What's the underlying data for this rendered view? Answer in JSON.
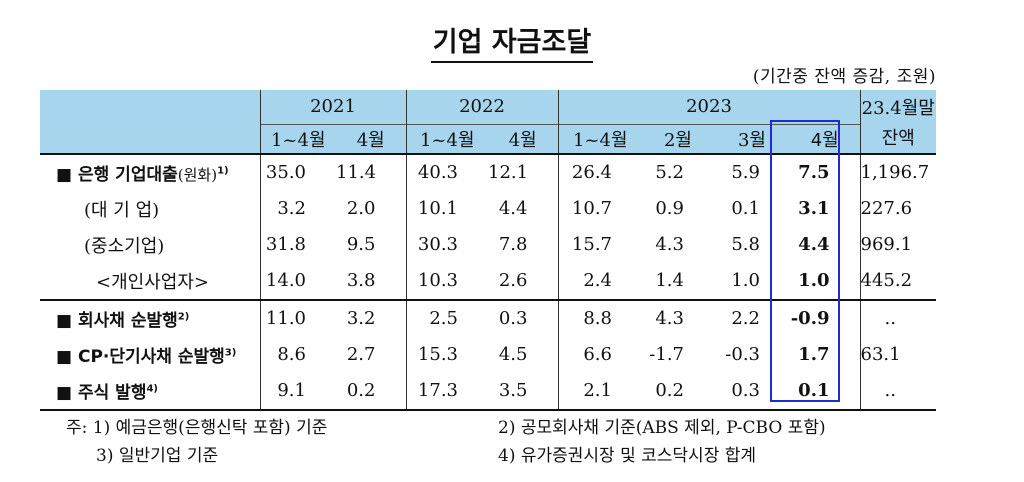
{
  "title": "기업 자금조달",
  "unit": "(기간중 잔액 증감, 조원)",
  "header": {
    "years": [
      "2021",
      "2022",
      "2023"
    ],
    "balance": "23.4월말",
    "balance2": "잔액",
    "periods": [
      "1~4월",
      "4월",
      "1~4월",
      "4월",
      "1~4월",
      "2월",
      "3월",
      "4월"
    ]
  },
  "rows": [
    {
      "label": "은행 기업대출",
      "note": "(원화)",
      "sup": "1)",
      "values": [
        "35.0",
        "11.4",
        "40.3",
        "12.1",
        "26.4",
        "5.2",
        "5.9",
        "7.5",
        "1,196.7"
      ]
    },
    {
      "label": "(대 기 업)",
      "values": [
        "3.2",
        "2.0",
        "10.1",
        "4.4",
        "10.7",
        "0.9",
        "0.1",
        "3.1",
        "227.6"
      ]
    },
    {
      "label": "(중소기업)",
      "values": [
        "31.8",
        "9.5",
        "30.3",
        "7.8",
        "15.7",
        "4.3",
        "5.8",
        "4.4",
        "969.1"
      ]
    },
    {
      "label": "<개인사업자>",
      "values": [
        "14.0",
        "3.8",
        "10.3",
        "2.6",
        "2.4",
        "1.4",
        "1.0",
        "1.0",
        "445.2"
      ]
    },
    {
      "label": "회사채 순발행",
      "sup": "2)",
      "values": [
        "11.0",
        "3.2",
        "2.5",
        "0.3",
        "8.8",
        "4.3",
        "2.2",
        "-0.9",
        ".."
      ]
    },
    {
      "label": "CP·단기사채 순발행",
      "sup": "3)",
      "values": [
        "8.6",
        "2.7",
        "15.3",
        "4.5",
        "6.6",
        "-1.7",
        "-0.3",
        "1.7",
        "63.1"
      ]
    },
    {
      "label": "주식 발행",
      "sup": "4)",
      "values": [
        "9.1",
        "0.2",
        "17.3",
        "3.5",
        "2.1",
        "0.2",
        "0.3",
        "0.1",
        ".."
      ]
    }
  ],
  "footnotes": {
    "f1": "주: 1) 예금은행(은행신탁 포함) 기준",
    "f2": "2) 공모회사채 기준(ABS 제외, P-CBO 포함)",
    "f3": "3) 일반기업 기준",
    "f4": "4) 유가증권시장 및 코스닥시장 합계"
  },
  "colors": {
    "header_bg": "#a8d5ee",
    "highlight_border": "#1f2bd0"
  },
  "icons": {
    "bullet": "black-square-icon"
  }
}
